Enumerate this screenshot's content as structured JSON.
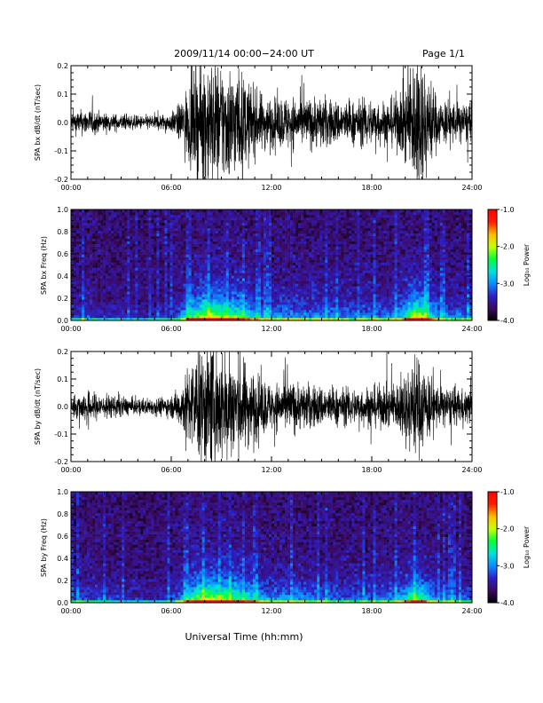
{
  "header": {
    "title": "2009/11/14  00:00−24:00 UT",
    "page": "Page 1/1"
  },
  "x_axis_label": "Universal Time (hh:mm)",
  "colorbar": {
    "label": "Log₁₀ Power",
    "ticks": [
      "-1.0",
      "-2.0",
      "-3.0",
      "-4.0"
    ],
    "range": [
      -4.0,
      -1.0
    ],
    "colormap": [
      "#000000",
      "#3b0a5e",
      "#2d20c8",
      "#0a8cff",
      "#00e0e0",
      "#00ff3c",
      "#c8ff00",
      "#ffc000",
      "#ff2000",
      "#ff0000"
    ]
  },
  "chart_data": [
    {
      "type": "line",
      "ylabel": "SPA bx dB/dt (nT/sec)",
      "xlim": [
        0,
        24
      ],
      "ylim": [
        -0.2,
        0.2
      ],
      "xticks": [
        "00:00",
        "06:00",
        "12:00",
        "18:00",
        "24:00"
      ],
      "yticks": [
        "0.2",
        "0.1",
        "0.0",
        "-0.1",
        "-0.2"
      ],
      "envelope_hours": [
        0,
        1,
        2,
        3,
        4,
        5,
        6,
        6.5,
        7,
        8,
        9,
        10,
        11,
        12,
        13,
        14,
        15,
        16,
        17,
        18,
        19,
        19.8,
        20.5,
        21,
        21.5,
        22,
        23,
        24
      ],
      "envelope_amplitude": [
        0.04,
        0.05,
        0.035,
        0.03,
        0.025,
        0.03,
        0.035,
        0.07,
        0.14,
        0.25,
        0.23,
        0.2,
        0.12,
        0.09,
        0.1,
        0.09,
        0.1,
        0.08,
        0.08,
        0.09,
        0.08,
        0.12,
        0.25,
        0.25,
        0.16,
        0.09,
        0.08,
        0.07
      ]
    },
    {
      "type": "heatmap",
      "ylabel": "SPA bx Freq (Hz)",
      "xlim": [
        0,
        24
      ],
      "ylim": [
        0.0,
        1.0
      ],
      "xticks": [
        "00:00",
        "06:00",
        "12:00",
        "18:00",
        "24:00"
      ],
      "yticks": [
        "1.0",
        "0.8",
        "0.6",
        "0.4",
        "0.2",
        "0.0"
      ],
      "zrange": [
        -4.0,
        -1.0
      ],
      "zlabel": "Log₁₀ Power"
    },
    {
      "type": "line",
      "ylabel": "SPA by dB/dt (nT/sec)",
      "xlim": [
        0,
        24
      ],
      "ylim": [
        -0.2,
        0.2
      ],
      "xticks": [
        "00:00",
        "06:00",
        "12:00",
        "18:00",
        "24:00"
      ],
      "yticks": [
        "0.2",
        "0.1",
        "0.0",
        "-0.1",
        "-0.2"
      ],
      "envelope_hours": [
        0,
        1,
        2,
        3,
        4,
        5,
        6,
        6.5,
        7,
        8,
        9,
        10,
        11,
        12,
        13,
        14,
        15,
        16,
        17,
        18,
        19,
        19.8,
        20.5,
        21,
        21.5,
        22,
        23,
        24
      ],
      "envelope_amplitude": [
        0.04,
        0.06,
        0.045,
        0.04,
        0.03,
        0.035,
        0.04,
        0.08,
        0.15,
        0.25,
        0.22,
        0.2,
        0.13,
        0.09,
        0.1,
        0.09,
        0.08,
        0.07,
        0.07,
        0.08,
        0.08,
        0.11,
        0.2,
        0.18,
        0.12,
        0.08,
        0.07,
        0.06
      ]
    },
    {
      "type": "heatmap",
      "ylabel": "SPA by Freq (Hz)",
      "xlim": [
        0,
        24
      ],
      "ylim": [
        0.0,
        1.0
      ],
      "xticks": [
        "00:00",
        "06:00",
        "12:00",
        "18:00",
        "24:00"
      ],
      "yticks": [
        "1.0",
        "0.8",
        "0.6",
        "0.4",
        "0.2",
        "0.0"
      ],
      "zrange": [
        -4.0,
        -1.0
      ],
      "zlabel": "Log₁₀ Power"
    }
  ]
}
